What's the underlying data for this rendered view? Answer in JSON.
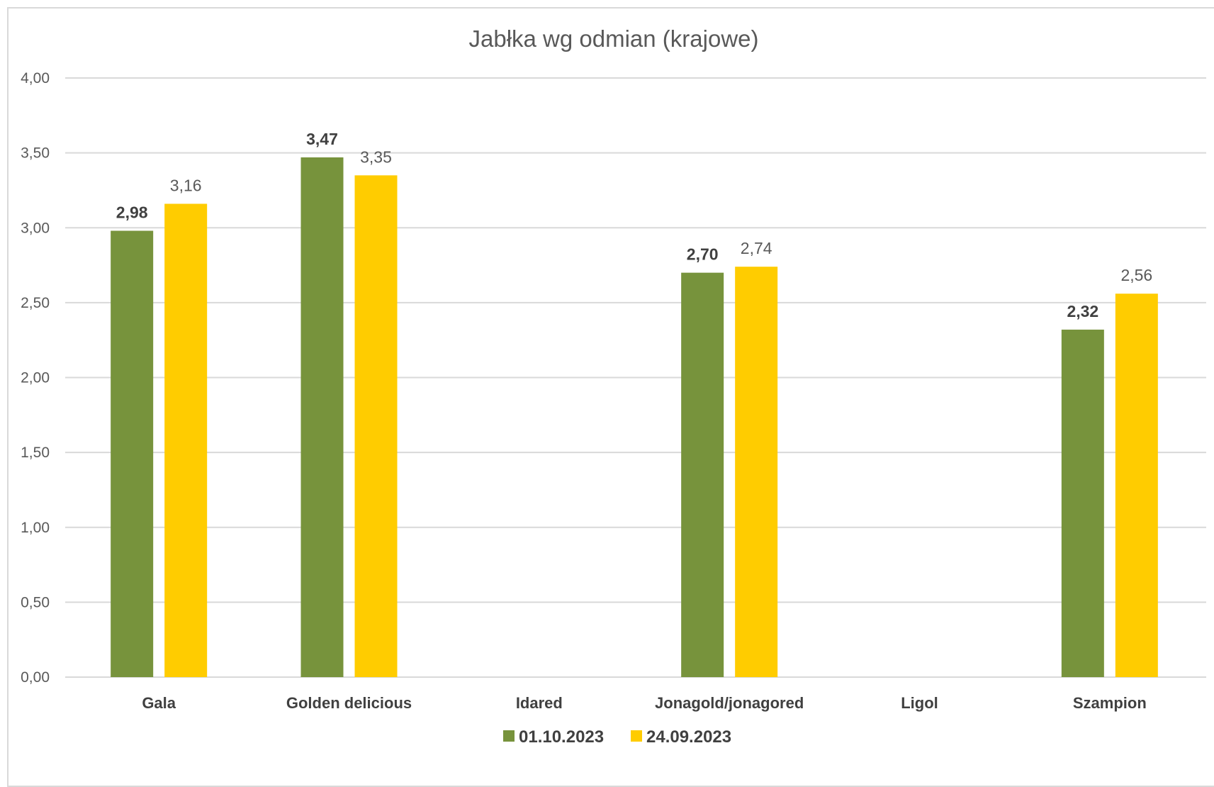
{
  "chart_data": {
    "type": "bar",
    "title": "Jabłka wg odmian (krajowe)",
    "categories": [
      "Gala",
      "Golden delicious",
      "Idared",
      "Jonagold/jonagored",
      "Ligol",
      "Szampion"
    ],
    "series": [
      {
        "name": "01.10.2023",
        "color": "#77933c",
        "values": [
          2.98,
          3.47,
          null,
          2.7,
          null,
          2.32
        ],
        "labels": [
          "2,98",
          "3,47",
          "",
          "2,70",
          "",
          "2,32"
        ]
      },
      {
        "name": "24.09.2023",
        "color": "#ffcc00",
        "values": [
          3.16,
          3.35,
          null,
          2.74,
          null,
          2.56
        ],
        "labels": [
          "3,16",
          "3,35",
          "",
          "2,74",
          "",
          "2,56"
        ]
      }
    ],
    "ylim": [
      0,
      4
    ],
    "yticks": [
      "0,00",
      "0,50",
      "1,00",
      "1,50",
      "2,00",
      "2,50",
      "3,00",
      "3,50",
      "4,00"
    ],
    "xlabel": "",
    "ylabel": "",
    "grid": "horizontal",
    "legend_position": "bottom"
  }
}
